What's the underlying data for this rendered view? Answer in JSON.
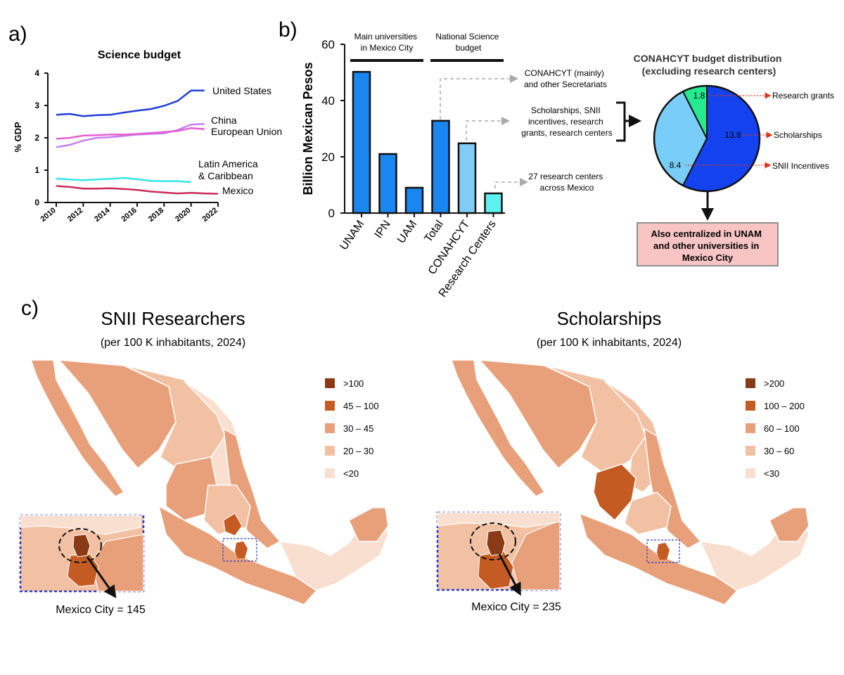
{
  "panels": {
    "a_label": "a)",
    "b_label": "b)",
    "c_label": "c)"
  },
  "colors": {
    "united_states": "#1f3fd6",
    "china": "#c77df0",
    "european_union": "#e35fd0",
    "latin_america": "#33e6e6",
    "mexico": "#cc2a5a",
    "bar_dark": "#1a86f0",
    "bar_mid": "#7fcdf7",
    "bar_light": "#5ff0f0",
    "pie_scholarships": "#1442ee",
    "pie_snii": "#78cdf9",
    "pie_grants": "#26ea8f",
    "map_gt100": "#8a3b15",
    "map_45_100": "#c35b23",
    "map_30_45": "#e8a07a",
    "map_20_30": "#f2c1a3",
    "map_lt20": "#f9dfcf",
    "callout_bg": "#f8c4c4"
  },
  "chart_data": [
    {
      "type": "line",
      "title": "Science budget",
      "xlabel": "",
      "ylabel": "% GDP",
      "xlim": [
        2010,
        2022
      ],
      "ylim": [
        0,
        4
      ],
      "x_ticks": [
        "2010",
        "2012",
        "2014",
        "2016",
        "2018",
        "2020",
        "2022"
      ],
      "y_ticks": [
        "0",
        "1",
        "2",
        "3",
        "4"
      ],
      "grid": false,
      "series": [
        {
          "name": "United States",
          "color_key": "united_states",
          "x": [
            2010,
            2011,
            2012,
            2013,
            2014,
            2015,
            2016,
            2017,
            2018,
            2019,
            2020,
            2021
          ],
          "y": [
            2.71,
            2.74,
            2.67,
            2.7,
            2.71,
            2.78,
            2.84,
            2.89,
            2.99,
            3.14,
            3.46,
            3.46
          ]
        },
        {
          "name": "China",
          "color_key": "china",
          "x": [
            2010,
            2011,
            2012,
            2013,
            2014,
            2015,
            2016,
            2017,
            2018,
            2019,
            2020,
            2021
          ],
          "y": [
            1.71,
            1.78,
            1.91,
            2.0,
            2.02,
            2.06,
            2.1,
            2.12,
            2.14,
            2.24,
            2.41,
            2.43
          ]
        },
        {
          "name": "European Union",
          "color_key": "european_union",
          "x": [
            2010,
            2011,
            2012,
            2013,
            2014,
            2015,
            2016,
            2017,
            2018,
            2019,
            2020,
            2021
          ],
          "y": [
            1.97,
            2.0,
            2.07,
            2.08,
            2.1,
            2.1,
            2.12,
            2.15,
            2.18,
            2.21,
            2.3,
            2.27
          ]
        },
        {
          "name": "Latin America & Caribbean",
          "label_lines": [
            "Latin America",
            "& Caribbean"
          ],
          "color_key": "latin_america",
          "x": [
            2010,
            2011,
            2012,
            2013,
            2014,
            2015,
            2016,
            2017,
            2018,
            2019,
            2020
          ],
          "y": [
            0.74,
            0.71,
            0.69,
            0.71,
            0.73,
            0.76,
            0.72,
            0.67,
            0.66,
            0.66,
            0.63
          ]
        },
        {
          "name": "Mexico",
          "color_key": "mexico",
          "x": [
            2010,
            2011,
            2012,
            2013,
            2014,
            2015,
            2016,
            2017,
            2018,
            2019,
            2020,
            2021,
            2022
          ],
          "y": [
            0.51,
            0.48,
            0.43,
            0.43,
            0.44,
            0.42,
            0.39,
            0.34,
            0.31,
            0.28,
            0.3,
            0.28,
            0.27
          ]
        }
      ]
    },
    {
      "type": "bar",
      "title": "",
      "xlabel": "",
      "ylabel": "Billion Mexican Pesos",
      "ylim": [
        0,
        60
      ],
      "y_ticks": [
        "0",
        "20",
        "40",
        "60"
      ],
      "categories": [
        "UNAM",
        "IPN",
        "UAM",
        "Total",
        "CONAHCYT",
        "Research Centers"
      ],
      "values": [
        50.2,
        21,
        9,
        32.8,
        24.8,
        7
      ],
      "bar_color_keys": [
        "bar_dark",
        "bar_dark",
        "bar_dark",
        "bar_dark",
        "bar_mid",
        "bar_light"
      ],
      "group_labels": [
        {
          "lines": [
            "Main universities",
            "in Mexico City"
          ]
        },
        {
          "lines": [
            "National Science",
            "budget"
          ]
        }
      ],
      "annotations": [
        {
          "lines": [
            "CONAHCYT (mainly)",
            "and other Secretariats"
          ]
        },
        {
          "lines": [
            "Scholarships,  SNII",
            "incentives, research",
            "grants, research centers"
          ]
        },
        {
          "lines": [
            "27 research centers",
            "across Mexico"
          ]
        }
      ]
    },
    {
      "type": "pie",
      "title_lines": [
        "CONAHCYT budget distribution",
        "(excluding research centers)"
      ],
      "slices": [
        {
          "label": "Research grants",
          "value": 1.8,
          "color_key": "pie_grants"
        },
        {
          "label": "Scholarships",
          "value": 13.8,
          "color_key": "pie_scholarships"
        },
        {
          "label": "SNII Incentives",
          "value": 8.4,
          "color_key": "pie_snii"
        }
      ],
      "value_labels": [
        "1.8",
        "13.8",
        "8.4"
      ],
      "callout_lines": [
        "Also centralized in UNAM",
        "and other universities in",
        "Mexico City"
      ]
    }
  ],
  "maps": [
    {
      "title": "SNII Researchers",
      "subtitle": "(per 100 K inhabitants, 2024)",
      "legend": [
        ">100",
        "45 – 100",
        "30 – 45",
        "20 – 30",
        "<20"
      ],
      "inset_label": "Mexico City = 145"
    },
    {
      "title": "Scholarships",
      "subtitle": "(per 100 K inhabitants, 2024)",
      "legend": [
        ">200",
        "100 – 200",
        "60 – 100",
        "30 – 60",
        "<30"
      ],
      "inset_label": "Mexico City = 235"
    }
  ]
}
